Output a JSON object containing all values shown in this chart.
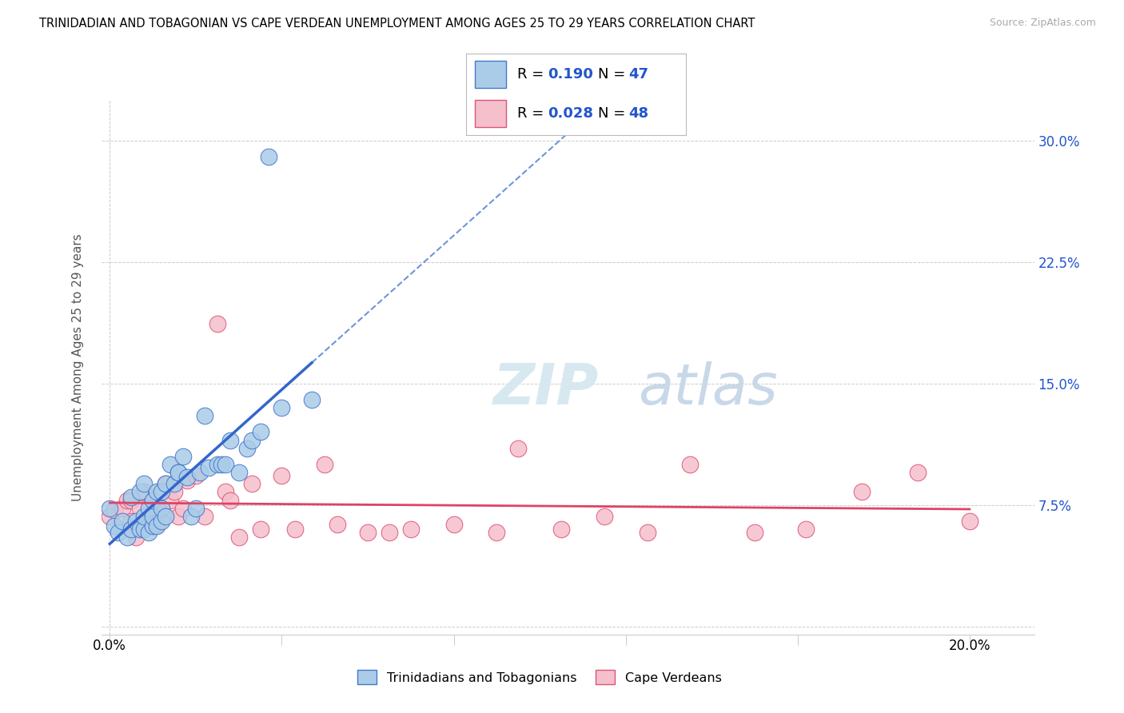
{
  "title": "TRINIDADIAN AND TOBAGONIAN VS CAPE VERDEAN UNEMPLOYMENT AMONG AGES 25 TO 29 YEARS CORRELATION CHART",
  "source": "Source: ZipAtlas.com",
  "ylabel": "Unemployment Among Ages 25 to 29 years",
  "ylim": [
    -0.005,
    0.325
  ],
  "xlim": [
    -0.002,
    0.215
  ],
  "yticks": [
    0.0,
    0.075,
    0.15,
    0.225,
    0.3
  ],
  "ytick_labels": [
    "",
    "7.5%",
    "15.0%",
    "22.5%",
    "30.0%"
  ],
  "series1_name": "Trinidadians and Tobagonians",
  "series2_name": "Cape Verdeans",
  "series1_R": "0.190",
  "series1_N": "47",
  "series2_R": "0.028",
  "series2_N": "48",
  "series1_color": "#aacce8",
  "series2_color": "#f5bfcc",
  "series1_edge_color": "#4477cc",
  "series2_edge_color": "#dd5577",
  "trend1_color": "#3366cc",
  "trend2_color": "#dd4466",
  "background_color": "#ffffff",
  "grid_color": "#cccccc",
  "series1_x": [
    0.0,
    0.001,
    0.002,
    0.003,
    0.004,
    0.005,
    0.005,
    0.006,
    0.007,
    0.007,
    0.008,
    0.008,
    0.008,
    0.009,
    0.009,
    0.01,
    0.01,
    0.01,
    0.011,
    0.011,
    0.012,
    0.012,
    0.012,
    0.013,
    0.013,
    0.014,
    0.015,
    0.016,
    0.016,
    0.017,
    0.018,
    0.019,
    0.02,
    0.021,
    0.022,
    0.023,
    0.025,
    0.026,
    0.027,
    0.028,
    0.03,
    0.032,
    0.033,
    0.035,
    0.037,
    0.04,
    0.047
  ],
  "series1_y": [
    0.073,
    0.062,
    0.058,
    0.065,
    0.055,
    0.06,
    0.08,
    0.065,
    0.06,
    0.083,
    0.06,
    0.068,
    0.088,
    0.058,
    0.073,
    0.062,
    0.068,
    0.078,
    0.062,
    0.083,
    0.065,
    0.073,
    0.083,
    0.068,
    0.088,
    0.1,
    0.088,
    0.095,
    0.095,
    0.105,
    0.092,
    0.068,
    0.073,
    0.095,
    0.13,
    0.098,
    0.1,
    0.1,
    0.1,
    0.115,
    0.095,
    0.11,
    0.115,
    0.12,
    0.29,
    0.135,
    0.14
  ],
  "series2_x": [
    0.0,
    0.001,
    0.003,
    0.004,
    0.005,
    0.005,
    0.006,
    0.007,
    0.008,
    0.008,
    0.009,
    0.01,
    0.01,
    0.011,
    0.012,
    0.013,
    0.014,
    0.015,
    0.016,
    0.017,
    0.018,
    0.02,
    0.022,
    0.025,
    0.027,
    0.028,
    0.03,
    0.033,
    0.035,
    0.04,
    0.043,
    0.05,
    0.053,
    0.06,
    0.065,
    0.07,
    0.08,
    0.09,
    0.095,
    0.105,
    0.115,
    0.125,
    0.135,
    0.15,
    0.162,
    0.175,
    0.188,
    0.2
  ],
  "series2_y": [
    0.068,
    0.072,
    0.073,
    0.078,
    0.078,
    0.065,
    0.055,
    0.073,
    0.065,
    0.083,
    0.063,
    0.068,
    0.078,
    0.063,
    0.073,
    0.088,
    0.078,
    0.083,
    0.068,
    0.073,
    0.09,
    0.093,
    0.068,
    0.187,
    0.083,
    0.078,
    0.055,
    0.088,
    0.06,
    0.093,
    0.06,
    0.1,
    0.063,
    0.058,
    0.058,
    0.06,
    0.063,
    0.058,
    0.11,
    0.06,
    0.068,
    0.058,
    0.1,
    0.058,
    0.06,
    0.083,
    0.095,
    0.065
  ],
  "trend1_xstart": 0.0,
  "trend1_xend": 0.047,
  "trend1_dash_xend": 0.215,
  "trend2_xstart": 0.0,
  "trend2_xend": 0.2
}
